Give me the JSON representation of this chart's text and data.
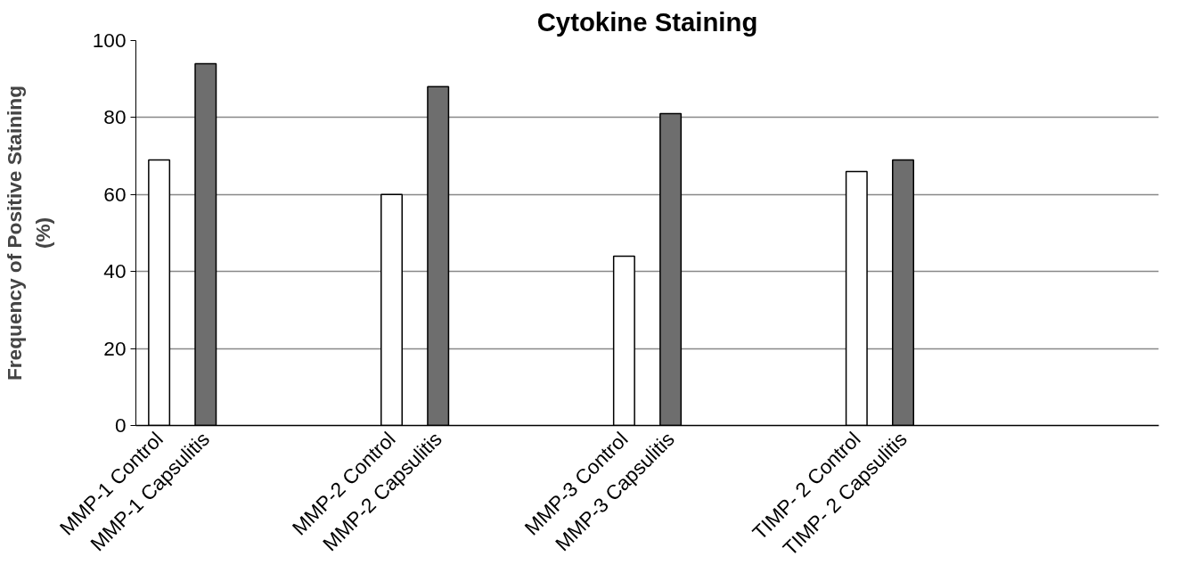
{
  "chart_data": {
    "type": "bar",
    "title": "Cytokine Staining",
    "ylabel": "Frequency of Positive Staining\n(%)",
    "categories": [
      "MMP-1 Control",
      "MMP-1 Capsulitis",
      null,
      null,
      null,
      "MMP-2 Control",
      "MMP-2 Capsulitis",
      null,
      null,
      null,
      "MMP-3 Control",
      "MMP-3 Capsulitis",
      null,
      null,
      null,
      "TIMP- 2 Control",
      "TIMP- 2 Capsulitis",
      null,
      null,
      null,
      null,
      null
    ],
    "values": [
      69,
      94,
      null,
      null,
      null,
      60,
      88,
      null,
      null,
      null,
      44,
      81,
      null,
      null,
      null,
      66,
      69,
      null,
      null,
      null,
      null,
      null
    ],
    "colors": [
      "#ffffff",
      "#6e6e6e",
      "#ffffff",
      "#ffffff",
      "#ffffff",
      "#ffffff",
      "#6e6e6e",
      "#ffffff",
      "#ffffff",
      "#ffffff",
      "#ffffff",
      "#6e6e6e",
      "#ffffff",
      "#ffffff",
      "#ffffff",
      "#ffffff",
      "#6e6e6e",
      "#ffffff",
      "#ffffff",
      "#ffffff",
      "#ffffff",
      "#ffffff"
    ],
    "ylim": [
      0,
      100
    ],
    "yticks": [
      0,
      20,
      40,
      60,
      80,
      100
    ],
    "grid": "y"
  }
}
